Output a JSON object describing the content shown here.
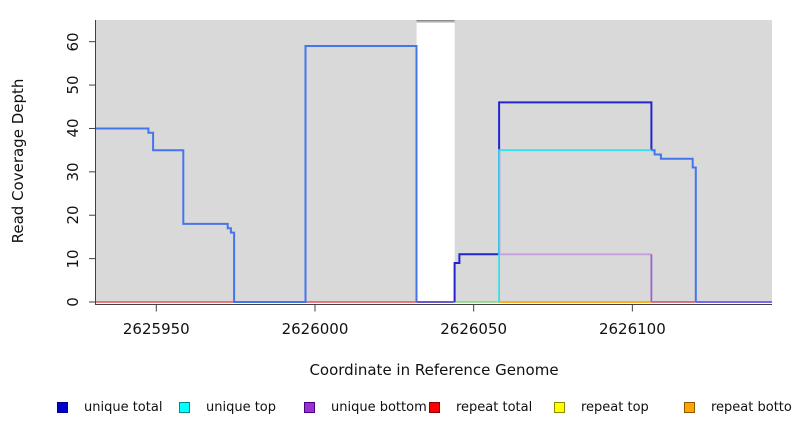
{
  "chart_data": {
    "type": "line",
    "subtype": "step-coverage",
    "title": "",
    "xlabel": "Coordinate in Reference Genome",
    "ylabel": "Read Coverage Depth",
    "xlim": [
      2625931,
      2626144
    ],
    "ylim": [
      0,
      65
    ],
    "grid": false,
    "plot_bg_color": "#d9d9d9",
    "x_ticks": [
      {
        "value": 2625950,
        "label": "2625950"
      },
      {
        "value": 2626000,
        "label": "2626000"
      },
      {
        "value": 2626050,
        "label": "2626050"
      },
      {
        "value": 2626100,
        "label": "2626100"
      }
    ],
    "y_ticks": [
      {
        "value": 0,
        "label": "0"
      },
      {
        "value": 10,
        "label": "10"
      },
      {
        "value": 20,
        "label": "20"
      },
      {
        "value": 30,
        "label": "30"
      },
      {
        "value": 40,
        "label": "40"
      },
      {
        "value": 50,
        "label": "50"
      },
      {
        "value": 60,
        "label": "60"
      }
    ],
    "uncovered_region": {
      "x_start": 2626032,
      "x_end": 2626044,
      "fill": "#ffffff",
      "clipped_bar": {
        "fill": "#d3d3d3",
        "top_edge_color": "#8c8c8c",
        "note": "coverage exceeds y-axis limit, clipped at top"
      }
    },
    "series": [
      {
        "name": "repeat-total-left-zero",
        "color": "#e4505e",
        "width": 1.6,
        "points": [
          [
            2625931,
            0
          ],
          [
            2626032,
            0
          ]
        ]
      },
      {
        "name": "repeat-total-right-zero",
        "color": "#cf4a66",
        "width": 1.6,
        "points": [
          [
            2626106,
            0
          ],
          [
            2626120,
            0
          ]
        ]
      },
      {
        "name": "unique-top-repeat-top-zero",
        "color": "#7dd87d",
        "width": 1.6,
        "points": [
          [
            2626044,
            0
          ],
          [
            2626058,
            0
          ]
        ]
      },
      {
        "name": "repeat-bottom-zero",
        "color": "#ffa500",
        "width": 1.8,
        "points": [
          [
            2626058,
            0
          ],
          [
            2626106,
            0
          ]
        ]
      },
      {
        "name": "unique-total-right-plateau",
        "color": "#2424cf",
        "width": 2,
        "points": [
          [
            2626044,
            0
          ],
          [
            2626044,
            9
          ],
          [
            2626045.5,
            9
          ],
          [
            2626045.5,
            11
          ],
          [
            2626058,
            11
          ],
          [
            2626058,
            46
          ],
          [
            2626106,
            46
          ],
          [
            2626106,
            35
          ]
        ]
      },
      {
        "name": "unique-top",
        "color": "#35dfe8",
        "width": 1.8,
        "points": [
          [
            2626058,
            0
          ],
          [
            2626058,
            35
          ],
          [
            2626106,
            35
          ]
        ]
      },
      {
        "name": "unique-bottom",
        "color": "#c79fe3",
        "width": 1.8,
        "points": [
          [
            2626058,
            11
          ],
          [
            2626106,
            11
          ]
        ]
      },
      {
        "name": "unique-bottom-drop",
        "color": "#9a63d3",
        "width": 1.8,
        "points": [
          [
            2626106,
            11
          ],
          [
            2626106,
            0
          ]
        ]
      },
      {
        "name": "unique-total-left-staircase",
        "color": "#4575ec",
        "width": 2,
        "points": [
          [
            2625931,
            40
          ],
          [
            2625947.5,
            40
          ],
          [
            2625947.5,
            39
          ],
          [
            2625949,
            39
          ],
          [
            2625949,
            35
          ],
          [
            2625958.5,
            35
          ],
          [
            2625958.5,
            18
          ],
          [
            2625972.5,
            18
          ],
          [
            2625972.5,
            17
          ],
          [
            2625973.5,
            17
          ],
          [
            2625973.5,
            16
          ],
          [
            2625974.5,
            16
          ],
          [
            2625974.5,
            0
          ],
          [
            2625997,
            0
          ],
          [
            2625997,
            59
          ],
          [
            2626032,
            59
          ],
          [
            2626032,
            0
          ]
        ]
      },
      {
        "name": "unique-total-gap-zero",
        "color": "#6a5acd",
        "width": 2,
        "points": [
          [
            2626032,
            0
          ],
          [
            2626044,
            0
          ]
        ]
      },
      {
        "name": "unique-total-right-descent",
        "color": "#4575ec",
        "width": 2,
        "points": [
          [
            2626106,
            35
          ],
          [
            2626107,
            35
          ],
          [
            2626107,
            34
          ],
          [
            2626109,
            34
          ],
          [
            2626109,
            33
          ],
          [
            2626119,
            33
          ],
          [
            2626119,
            31
          ],
          [
            2626120,
            31
          ],
          [
            2626120,
            0
          ]
        ]
      },
      {
        "name": "unique-total-tail-zero",
        "color": "#7b68ee",
        "width": 2,
        "points": [
          [
            2626120,
            0
          ],
          [
            2626144,
            0
          ]
        ]
      }
    ],
    "legend": [
      {
        "label": "unique total",
        "fill": "#0000cd",
        "border": "#00008b"
      },
      {
        "label": "unique top",
        "fill": "#00ffff",
        "border": "#008b8b"
      },
      {
        "label": "unique bottom",
        "fill": "#9b30d0",
        "border": "#4b0082"
      },
      {
        "label": "repeat total",
        "fill": "#ff0000",
        "border": "#8b0000"
      },
      {
        "label": "repeat top",
        "fill": "#ffff00",
        "border": "#8b8b00"
      },
      {
        "label": "repeat bottom",
        "fill": "#ffa500",
        "border": "#8b5a00"
      }
    ],
    "legend_position": "bottom"
  }
}
